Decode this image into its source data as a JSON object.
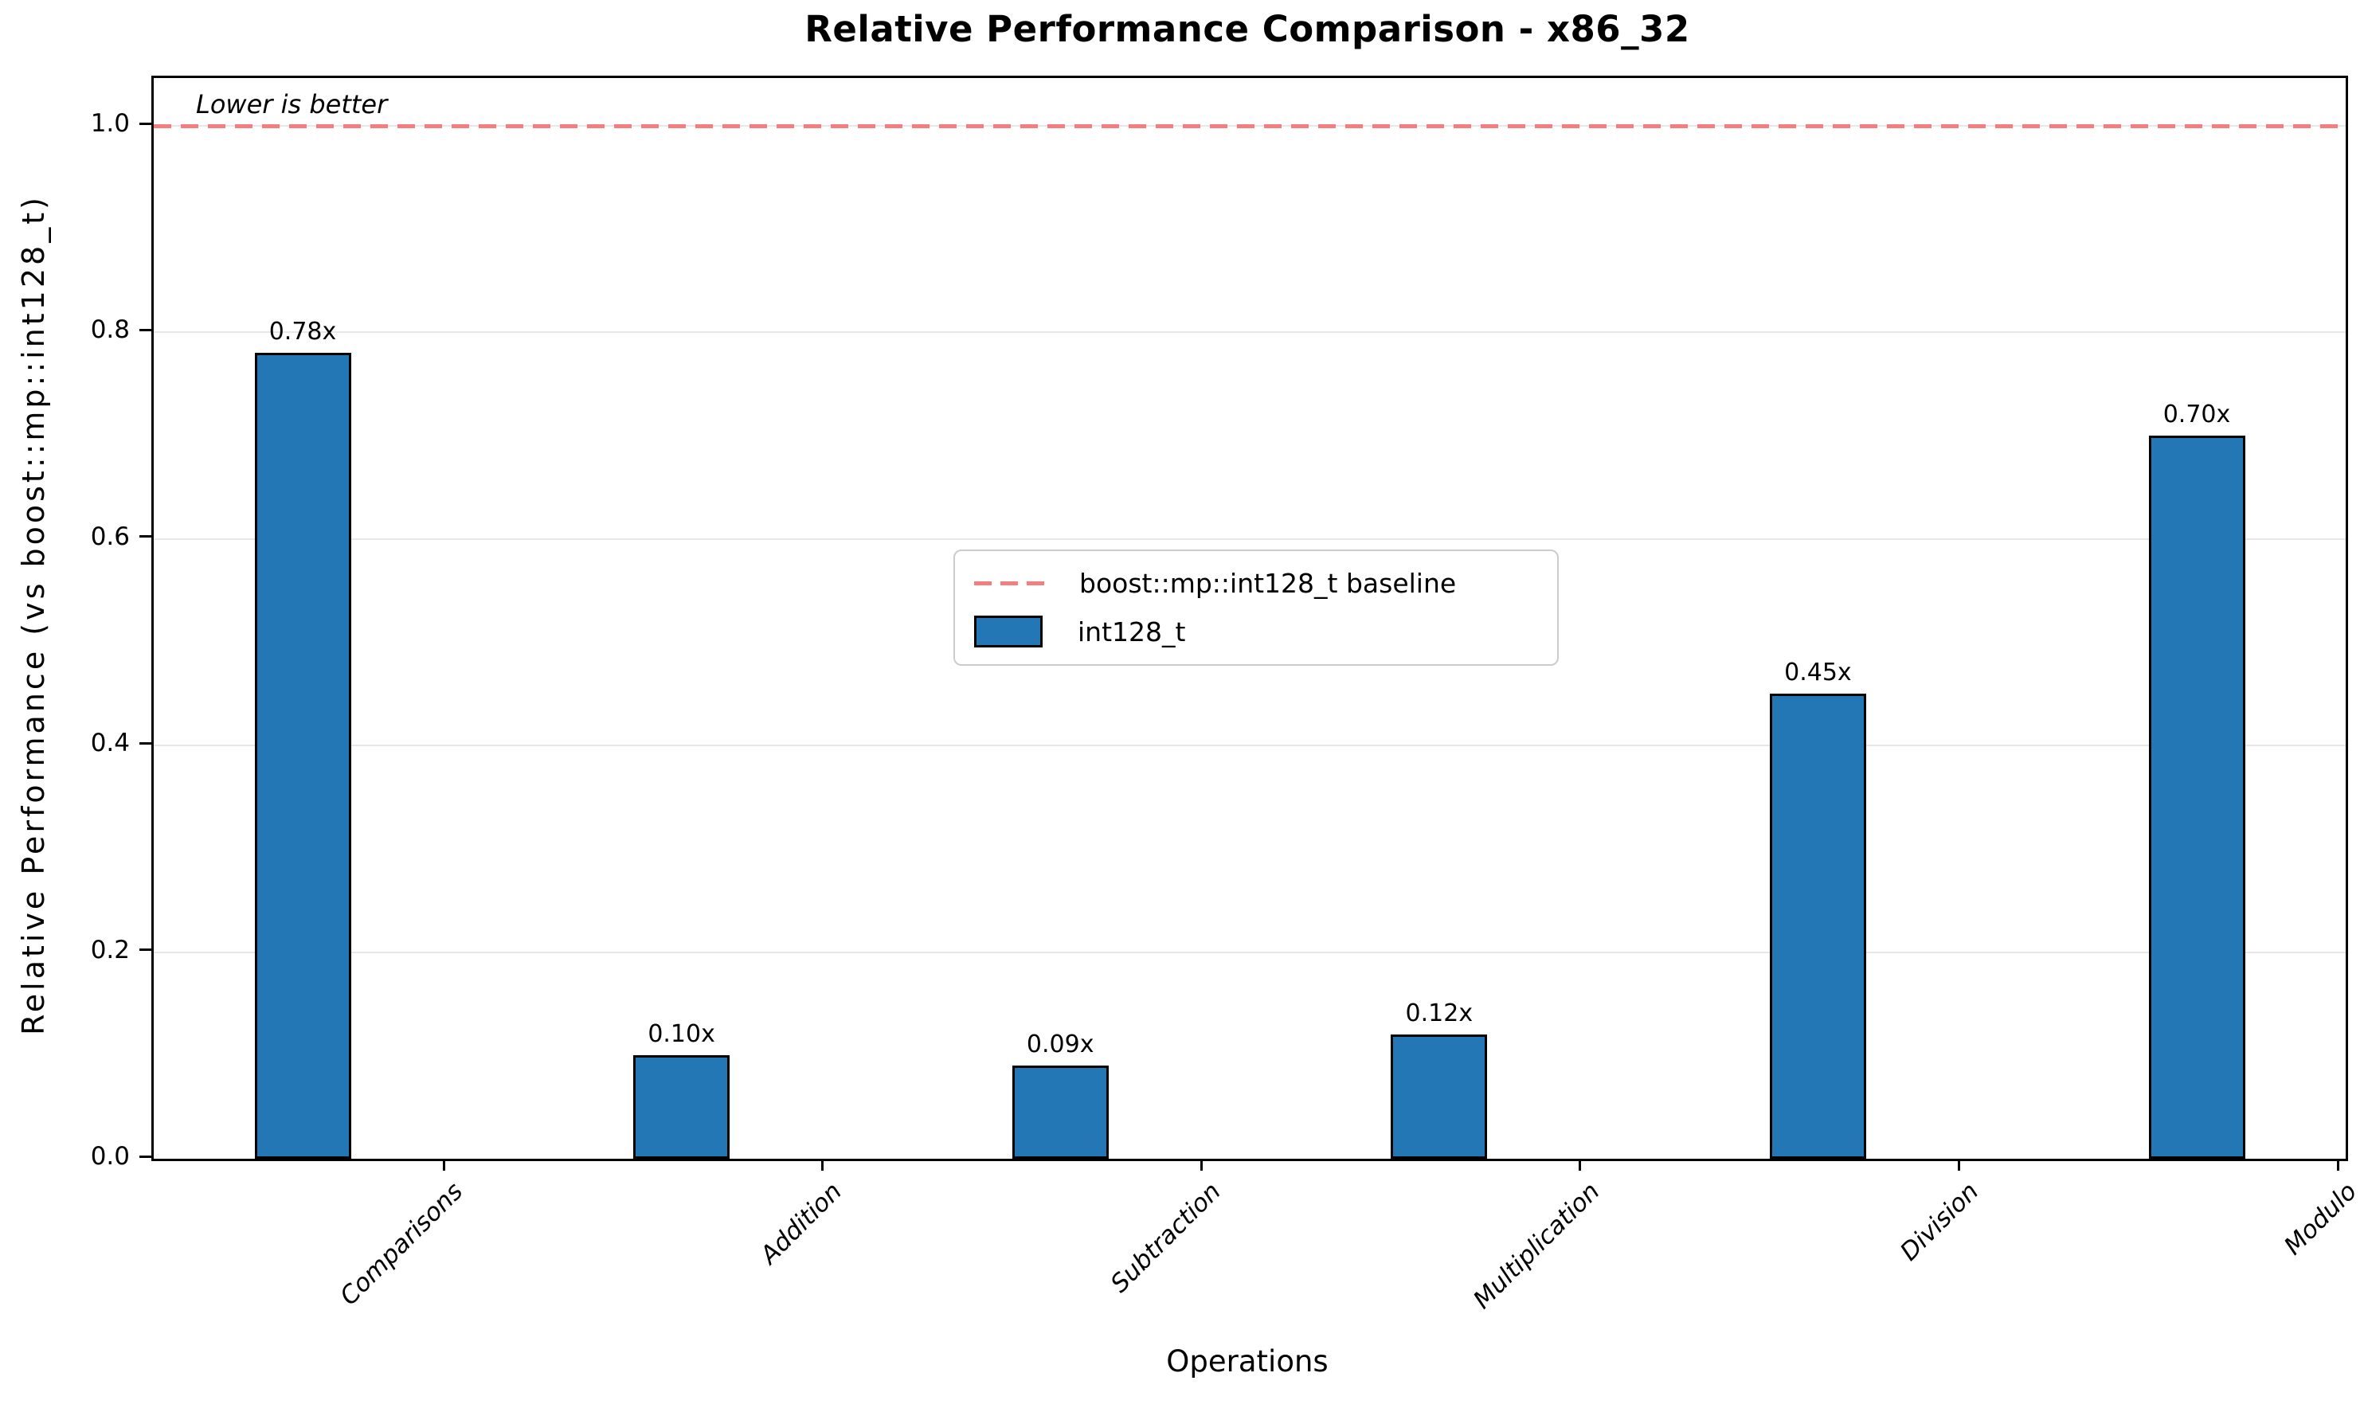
{
  "chart_data": {
    "type": "bar",
    "title": "Relative Performance Comparison - x86_32",
    "xlabel": "Operations",
    "ylabel": "Relative Performance (vs boost::mp::int128_t)",
    "annotation": "Lower is better",
    "categories": [
      "Comparisons",
      "Addition",
      "Subtraction",
      "Multiplication",
      "Division",
      "Modulo"
    ],
    "values": [
      0.78,
      0.1,
      0.09,
      0.12,
      0.45,
      0.7
    ],
    "value_labels": [
      "0.78x",
      "0.10x",
      "0.09x",
      "0.12x",
      "0.45x",
      "0.70x"
    ],
    "series_name": "int128_t",
    "baseline": {
      "value": 1.0,
      "label": "boost::mp::int128_t baseline"
    },
    "ytick_labels": [
      "0.0",
      "0.2",
      "0.4",
      "0.6",
      "0.8",
      "1.0"
    ],
    "ylim": [
      0.0,
      1.046
    ],
    "grid": "horizontal",
    "legend_position": "center",
    "legend": [
      {
        "swatch": "dashed-line",
        "label": "boost::mp::int128_t baseline"
      },
      {
        "swatch": "filled-bar",
        "label": "int128_t"
      }
    ],
    "colors": {
      "bar_fill": "#2277b4",
      "bar_edge": "#000000",
      "baseline_dash": "#f57d7d",
      "grid": "#e7e7e7",
      "text": "#000000"
    }
  }
}
